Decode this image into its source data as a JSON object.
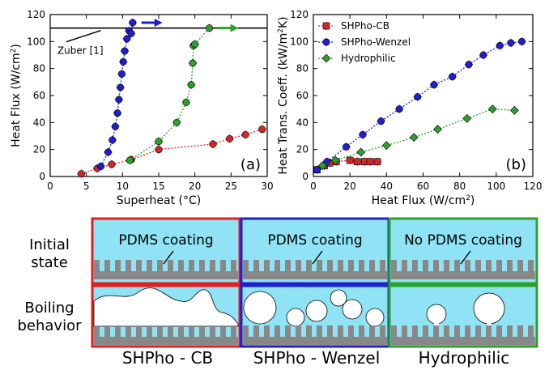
{
  "chart_data": [
    {
      "type": "scatter",
      "panel_label": "(a)",
      "xlabel": "Superheat (°C)",
      "ylabel": "Heat Flux (W/cm²)",
      "xlim": [
        0,
        30
      ],
      "ylim": [
        0,
        120
      ],
      "xticks": [
        0,
        5,
        10,
        15,
        20,
        25,
        30
      ],
      "yticks": [
        0,
        20,
        40,
        60,
        80,
        100,
        120
      ],
      "reference_line": {
        "y": 110,
        "label": "Zuber [1]"
      },
      "series": [
        {
          "name": "SHPho-CB",
          "color": "#d62728",
          "x": [
            4.3,
            6.5,
            8.5,
            11.2,
            15,
            22.5,
            24.8,
            27,
            29.3
          ],
          "y": [
            2,
            6,
            9,
            12.5,
            20,
            24,
            28,
            31,
            35
          ]
        },
        {
          "name": "SHPho-Wenzel",
          "color": "#1f1fd0",
          "x": [
            7,
            8,
            8.6,
            9,
            9.3,
            9.5,
            9.7,
            9.9,
            10.1,
            10.3,
            10.6,
            10.9,
            11.2,
            11.4
          ],
          "y": [
            7.5,
            18,
            27,
            37,
            47,
            57,
            66,
            76,
            85,
            93,
            102,
            108,
            106,
            114
          ]
        },
        {
          "name": "Hydrophilic",
          "color": "#2ca02c",
          "x": [
            11,
            15,
            17.5,
            18.8,
            19.5,
            19.7,
            19.8,
            20,
            22
          ],
          "y": [
            12,
            26,
            40,
            55,
            68,
            84,
            97,
            98,
            110
          ]
        }
      ],
      "arrows": [
        {
          "x": 11.5,
          "y": 114,
          "color": "#1f1fd0"
        },
        {
          "x": 22,
          "y": 110,
          "color": "#2ca02c"
        }
      ]
    },
    {
      "type": "line",
      "panel_label": "(b)",
      "xlabel": "Heat Flux (W/cm²)",
      "ylabel": "Heat Trans. Coeff. (kW/m²K)",
      "xlim": [
        0,
        120
      ],
      "ylim": [
        0,
        120
      ],
      "xticks": [
        0,
        20,
        40,
        60,
        80,
        100,
        120
      ],
      "yticks": [
        0,
        20,
        40,
        60,
        80,
        100,
        120
      ],
      "legend": "top-left",
      "series": [
        {
          "name": "SHPho-CB",
          "color": "#d62728",
          "marker": "square",
          "x": [
            2,
            6,
            9,
            12.5,
            20,
            24,
            28,
            31,
            35
          ],
          "y": [
            5,
            8,
            10,
            11,
            12,
            11,
            11,
            11,
            11
          ]
        },
        {
          "name": "SHPho-Wenzel",
          "color": "#1f1fd0",
          "marker": "circle",
          "x": [
            2,
            7.5,
            18,
            27,
            37,
            47,
            57,
            66,
            76,
            85,
            93,
            102,
            108,
            114
          ],
          "y": [
            5,
            11,
            22,
            31,
            41,
            50,
            59,
            68,
            74,
            83,
            90,
            97,
            99,
            100
          ]
        },
        {
          "name": "Hydrophilic",
          "color": "#2ca02c",
          "marker": "diamond",
          "x": [
            5,
            12,
            26,
            40,
            55,
            68,
            84,
            98,
            110
          ],
          "y": [
            8,
            12,
            18,
            23,
            29,
            35,
            43,
            50,
            49
          ]
        }
      ]
    }
  ],
  "schematic": {
    "row_labels": [
      "Initial state",
      "Boiling behavior"
    ],
    "panels": [
      {
        "name": "SHPho - CB",
        "border": "#e02020",
        "initial_text": "PDMS coating"
      },
      {
        "name": "SHPho - Wenzel",
        "border": "#1f1fd0",
        "initial_text": "PDMS coating"
      },
      {
        "name": "Hydrophilic",
        "border": "#2ca02c",
        "initial_text": "No PDMS coating"
      }
    ]
  },
  "colors": {
    "liquid": "#8fe3f5",
    "substrate": "#888888"
  }
}
